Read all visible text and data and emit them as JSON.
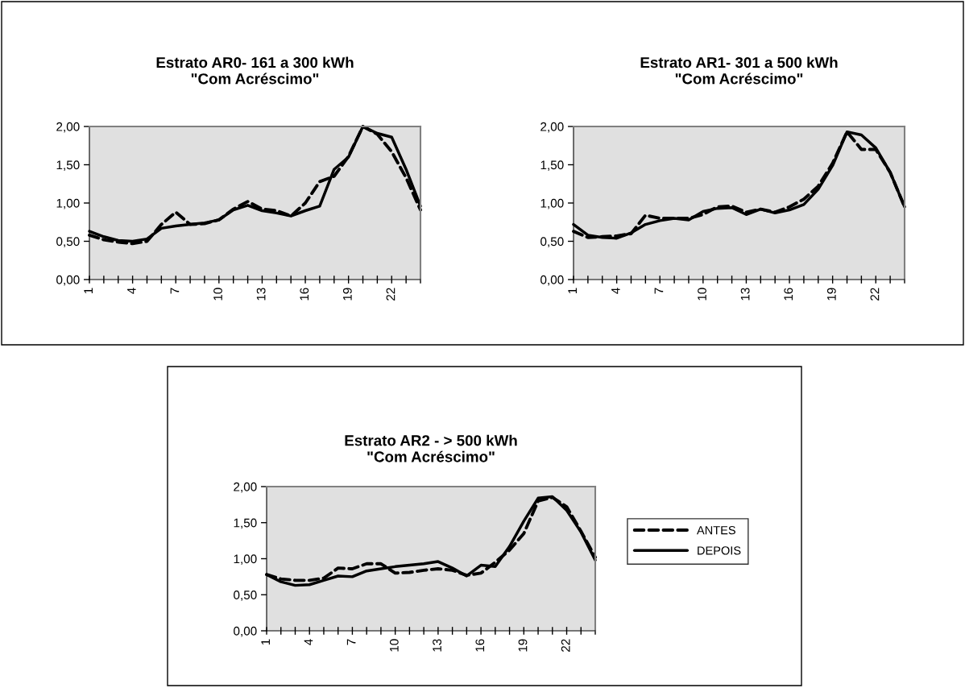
{
  "chart_data": [
    {
      "type": "line",
      "title": "Estrato AR0- 161 a 300 kWh\n\"Com Acréscimo\"",
      "categories": [
        "1",
        null,
        null,
        "4",
        null,
        null,
        "7",
        null,
        null,
        "10",
        null,
        null,
        "13",
        null,
        null,
        "16",
        null,
        null,
        "19",
        null,
        null,
        "22",
        null,
        null
      ],
      "ylim": [
        0,
        2
      ],
      "yticks": [
        {
          "value": 0,
          "label": "0,00"
        },
        {
          "value": 0.5,
          "label": "0,50"
        },
        {
          "value": 1,
          "label": "1,00"
        },
        {
          "value": 1.5,
          "label": "1,50"
        },
        {
          "value": 2,
          "label": "2,00"
        }
      ],
      "grid": false,
      "legend": false,
      "marker": "none",
      "series": [
        {
          "color": "#000000",
          "line_style": "dashed",
          "values": [
            0.58,
            0.52,
            0.49,
            0.47,
            0.5,
            0.72,
            0.88,
            0.72,
            0.73,
            0.78,
            0.92,
            1.02,
            0.92,
            0.9,
            0.83,
            1.0,
            1.28,
            1.35,
            1.61,
            2.0,
            1.9,
            1.67,
            1.33,
            0.91
          ]
        },
        {
          "color": "#000000",
          "line_style": "solid",
          "values": [
            0.63,
            0.56,
            0.51,
            0.5,
            0.53,
            0.67,
            0.7,
            0.72,
            0.74,
            0.78,
            0.91,
            0.97,
            0.9,
            0.87,
            0.83,
            0.9,
            0.96,
            1.44,
            1.6,
            2.0,
            1.91,
            1.86,
            1.44,
            0.96
          ]
        }
      ]
    },
    {
      "type": "line",
      "title": "Estrato AR1- 301 a 500 kWh\n\"Com Acréscimo\"",
      "categories": [
        "1",
        null,
        null,
        "4",
        null,
        null,
        "7",
        null,
        null,
        "10",
        null,
        null,
        "13",
        null,
        null,
        "16",
        null,
        null,
        "19",
        null,
        null,
        "22",
        null,
        null
      ],
      "ylim": [
        0,
        2
      ],
      "yticks": [
        {
          "value": 0,
          "label": "0,00"
        },
        {
          "value": 0.5,
          "label": "0,50"
        },
        {
          "value": 1,
          "label": "1,00"
        },
        {
          "value": 1.5,
          "label": "1,50"
        },
        {
          "value": 2,
          "label": "2,00"
        }
      ],
      "grid": false,
      "legend": false,
      "marker": "none",
      "series": [
        {
          "color": "#000000",
          "line_style": "dashed",
          "values": [
            0.63,
            0.55,
            0.56,
            0.57,
            0.6,
            0.84,
            0.8,
            0.8,
            0.8,
            0.85,
            0.95,
            0.96,
            0.88,
            0.92,
            0.88,
            0.95,
            1.05,
            1.22,
            1.52,
            1.93,
            1.7,
            1.7,
            1.4,
            0.95
          ]
        },
        {
          "color": "#000000",
          "line_style": "solid",
          "values": [
            0.72,
            0.58,
            0.55,
            0.54,
            0.61,
            0.72,
            0.77,
            0.8,
            0.78,
            0.89,
            0.93,
            0.94,
            0.85,
            0.92,
            0.87,
            0.91,
            0.98,
            1.18,
            1.49,
            1.93,
            1.89,
            1.72,
            1.4,
            0.95
          ]
        }
      ]
    },
    {
      "type": "line",
      "title": "Estrato AR2 - > 500 kWh\n\"Com Acréscimo\"",
      "categories": [
        "1",
        null,
        null,
        "4",
        null,
        null,
        "7",
        null,
        null,
        "10",
        null,
        null,
        "13",
        null,
        null,
        "16",
        null,
        null,
        "19",
        null,
        null,
        "22",
        null,
        null
      ],
      "ylim": [
        0,
        2
      ],
      "yticks": [
        {
          "value": 0,
          "label": "0,00"
        },
        {
          "value": 0.5,
          "label": "0,50"
        },
        {
          "value": 1,
          "label": "1,00"
        },
        {
          "value": 1.5,
          "label": "1,50"
        },
        {
          "value": 2,
          "label": "2,00"
        }
      ],
      "grid": false,
      "legend": "right",
      "marker": "none",
      "series": [
        {
          "name": "ANTES",
          "color": "#000000",
          "line_style": "dashed",
          "values": [
            0.78,
            0.72,
            0.7,
            0.7,
            0.73,
            0.87,
            0.86,
            0.93,
            0.93,
            0.8,
            0.81,
            0.84,
            0.86,
            0.84,
            0.77,
            0.8,
            0.95,
            1.12,
            1.35,
            1.8,
            1.85,
            1.72,
            1.38,
            1.02
          ]
        },
        {
          "name": "DEPOIS",
          "color": "#000000",
          "line_style": "solid",
          "values": [
            0.78,
            0.68,
            0.63,
            0.64,
            0.7,
            0.76,
            0.75,
            0.83,
            0.86,
            0.89,
            0.91,
            0.93,
            0.96,
            0.87,
            0.76,
            0.91,
            0.89,
            1.17,
            1.52,
            1.84,
            1.86,
            1.67,
            1.37,
            0.98
          ]
        }
      ]
    }
  ]
}
